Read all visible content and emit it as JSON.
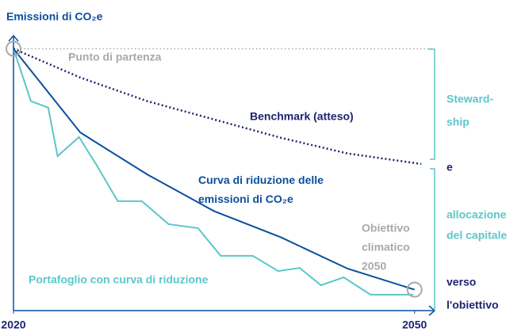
{
  "chart_data": {
    "type": "line",
    "title": "Emissioni di CO₂e",
    "xlim": [
      2020,
      2051.5
    ],
    "xticks": [
      2020,
      2050
    ],
    "ylim": [
      0,
      105
    ],
    "series": [
      {
        "name": "Benchmark (atteso)",
        "color": "#1c2470",
        "style": "dotted",
        "x": [
          2020,
          2025,
          2030,
          2035,
          2040,
          2045,
          2050.5
        ],
        "values": [
          100,
          89,
          80,
          73,
          66,
          60,
          56
        ]
      },
      {
        "name": "Curva di riduzione delle emissioni di CO₂e",
        "color": "#0a4f9e",
        "style": "solid",
        "x": [
          2020,
          2025,
          2030,
          2035,
          2040,
          2045,
          2050
        ],
        "values": [
          100,
          68,
          52,
          38,
          28,
          16,
          8
        ]
      },
      {
        "name": "Portafoglio con curva di riduzione",
        "color": "#5cc6c9",
        "style": "solid",
        "x": [
          2020,
          2021.3,
          2022.6,
          2023.3,
          2024.9,
          2026.2,
          2027.8,
          2029.6,
          2031.6,
          2033.8,
          2035.5,
          2037.9,
          2039.8,
          2041.4,
          2043.0,
          2044.7,
          2046.7,
          2049.9
        ],
        "values": [
          100,
          80,
          77.5,
          59,
          66.3,
          55.7,
          41.8,
          41.8,
          33,
          31.5,
          20.9,
          20.9,
          15.1,
          16.3,
          9.7,
          12.7,
          6.1,
          6.1
        ]
      }
    ],
    "start_label": "Punto di partenza",
    "target_label": [
      "Obiettivo",
      "climatico",
      "2050"
    ],
    "side_note": [
      "Steward-",
      "ship",
      "e",
      "allocazione",
      "del capitale",
      "verso",
      "l'obiettivo"
    ]
  }
}
